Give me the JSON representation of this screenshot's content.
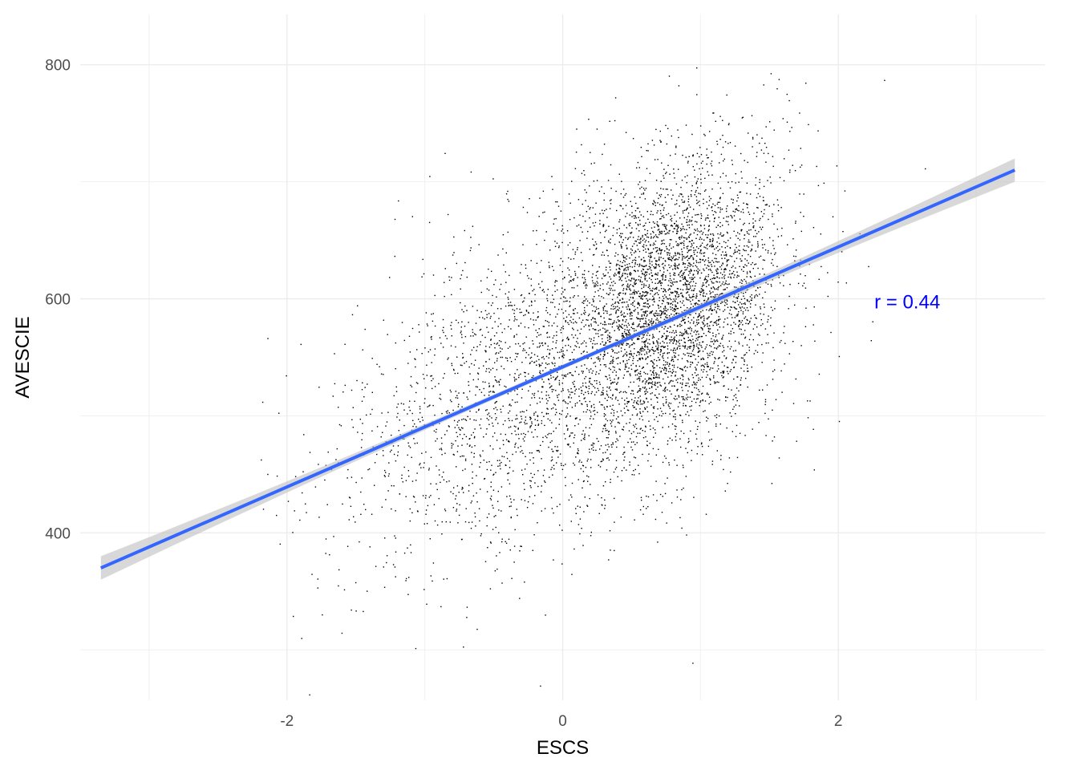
{
  "chart_data": {
    "type": "scatter",
    "title": "",
    "xlabel": "ESCS",
    "ylabel": "AVESCIE",
    "xlim": [
      -3.5,
      3.5
    ],
    "ylim": [
      257,
      843
    ],
    "x_ticks": [
      -2,
      0,
      2
    ],
    "y_ticks": [
      400,
      600,
      800
    ],
    "x_tick_labels": [
      "-2",
      "0",
      "2"
    ],
    "y_tick_labels": [
      "400",
      "600",
      "800"
    ],
    "grid": true,
    "legend": "none",
    "n_points": 6000,
    "point_color": "#000000",
    "regression": {
      "method": "lm",
      "x_start": -3.35,
      "x_end": 3.28,
      "y_start": 370,
      "y_end": 710,
      "line_color": "#3366FF",
      "ribbon_color": "#BEBEBE",
      "ribbon_half_width_ends": 10,
      "ribbon_half_width_center": 2
    },
    "annotation": {
      "text": "r = 0.44",
      "x": 2.5,
      "y": 598,
      "color": "#0000FF"
    }
  }
}
